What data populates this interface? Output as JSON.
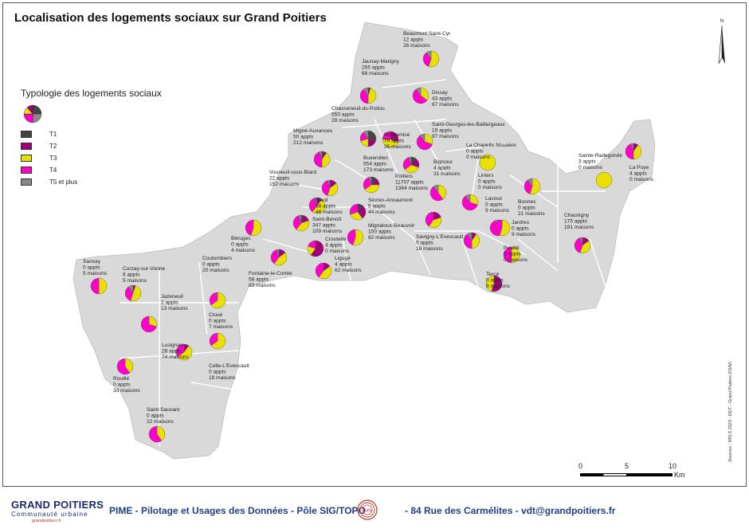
{
  "title": "Localisation des logements sociaux sur Grand Poitiers",
  "legend": {
    "title": "Typologie des logements sociaux",
    "items": [
      {
        "label": "T1",
        "color": "#444444"
      },
      {
        "label": "T2",
        "color": "#a0007a"
      },
      {
        "label": "T3",
        "color": "#e8e000"
      },
      {
        "label": "T4",
        "color": "#ff00cc"
      },
      {
        "label": "T5 et plus",
        "color": "#888888"
      }
    ]
  },
  "communes": [
    {
      "name": "Beaumont Saint-Cyr",
      "appts": "12 appts",
      "maisons": "26 maisons"
    },
    {
      "name": "Jaunay-Marigny",
      "appts": "255 appts",
      "maisons": "68 maisons"
    },
    {
      "name": "Dissay",
      "appts": "43 appts",
      "maisons": "87 maisons"
    },
    {
      "name": "Chasseneuil-du-Poitou",
      "appts": "550 appts",
      "maisons": "28 maisons"
    },
    {
      "name": "Saint-Georges-les-Baillargeaux",
      "appts": "19 appts",
      "maisons": "97 maisons"
    },
    {
      "name": "Montamisé",
      "appts": "79 appts",
      "maisons": "35 maisons"
    },
    {
      "name": "La Chapelle-Moulière",
      "appts": "0 appts",
      "maisons": "0 maisons"
    },
    {
      "name": "Migné-Auxances",
      "appts": "50 appts",
      "maisons": "212 maisons"
    },
    {
      "name": "Buxerolles",
      "appts": "554 appts",
      "maisons": "173 maisons"
    },
    {
      "name": "Poitiers",
      "appts": "11707 appts",
      "maisons": "1364 maisons"
    },
    {
      "name": "Bignoux",
      "appts": "4 appts",
      "maisons": "31 maisons"
    },
    {
      "name": "Liniers",
      "appts": "0 appts",
      "maisons": "0 maisons"
    },
    {
      "name": "Sainte-Radegonde",
      "appts": "3 appts",
      "maisons": "0 maisons"
    },
    {
      "name": "La Puye",
      "appts": "4 appts",
      "maisons": "0 maisons"
    },
    {
      "name": "Vouneuil-sous-Biard",
      "appts": "22 appts",
      "maisons": "152 maisons"
    },
    {
      "name": "Biard",
      "appts": "38 appts",
      "maisons": "46 maisons"
    },
    {
      "name": "Sèvres-Anxaumont",
      "appts": "5 appts",
      "maisons": "44 maisons"
    },
    {
      "name": "Lavoux",
      "appts": "0 appts",
      "maisons": "9 maisons"
    },
    {
      "name": "Bonnes",
      "appts": "0 appts",
      "maisons": "21 maisons"
    },
    {
      "name": "Saint-Benoît",
      "appts": "347 appts",
      "maisons": "109 maisons"
    },
    {
      "name": "Mignaloux-Beauvoir",
      "appts": "100 appts",
      "maisons": "82 maisons"
    },
    {
      "name": "Jardres",
      "appts": "0 appts",
      "maisons": "9 maisons"
    },
    {
      "name": "Chauvigny",
      "appts": "175 appts",
      "maisons": "191 maisons"
    },
    {
      "name": "Béruges",
      "appts": "0 appts",
      "maisons": "4 maisons"
    },
    {
      "name": "Croutelle",
      "appts": "4 appts",
      "maisons": "0 maisons"
    },
    {
      "name": "Savigny-L'Evescault",
      "appts": "0 appts",
      "maisons": "16 maisons"
    },
    {
      "name": "Coulombiers",
      "appts": "0 appts",
      "maisons": "20 maisons"
    },
    {
      "name": "Pouillé",
      "appts": "0 appts",
      "maisons": "0 maisons"
    },
    {
      "name": "Sanxay",
      "appts": "0 appts",
      "maisons": "5 maisons"
    },
    {
      "name": "Curzay-sur-Vonne",
      "appts": "6 appts",
      "maisons": "5 maisons"
    },
    {
      "name": "Ligugé",
      "appts": "4 appts",
      "maisons": "62 maisons"
    },
    {
      "name": "Fontaine-le-Comte",
      "appts": "58 appts",
      "maisons": "83 maisons"
    },
    {
      "name": "Tercé",
      "appts": "0 appts",
      "maisons": "8 maisons"
    },
    {
      "name": "Jazeneuil",
      "appts": "2 appts",
      "maisons": "13 maisons"
    },
    {
      "name": "Cloué",
      "appts": "0 appts",
      "maisons": "7 maisons"
    },
    {
      "name": "Lusignan",
      "appts": "28 appts",
      "maisons": "74 maisons"
    },
    {
      "name": "Celle-L'Evescault",
      "appts": "0 appts",
      "maisons": "19 maisons"
    },
    {
      "name": "Rouillé",
      "appts": "0 appts",
      "maisons": "33 maisons"
    },
    {
      "name": "Saint-Sauvant",
      "appts": "0 appts",
      "maisons": "22 maisons"
    }
  ],
  "scale": {
    "ticks": [
      "0",
      "5",
      "10"
    ],
    "unit": "Km"
  },
  "sources": "Sources : RPLS 2023 - DDT - Grand Poitiers DSAD",
  "footer": {
    "logo_main": "GRAND POITIERS",
    "logo_sub": "Communauté urbaine",
    "logo_url": "grandpoitiers.fr",
    "text_1": "PIME - Pilotage et Usages des Données - Pôle SIG/TOPO",
    "text_2": "- 84 Rue des Carmélites - vdt@grandpoitiers.fr",
    "gaia": "Gaïa"
  },
  "north": "N",
  "colors": {
    "map_fill": "#d9d9d9",
    "border": "#ffffff",
    "t1": "#444444",
    "t2": "#a0007a",
    "t3": "#e8e000",
    "t4": "#ff00cc",
    "t5": "#888888"
  }
}
